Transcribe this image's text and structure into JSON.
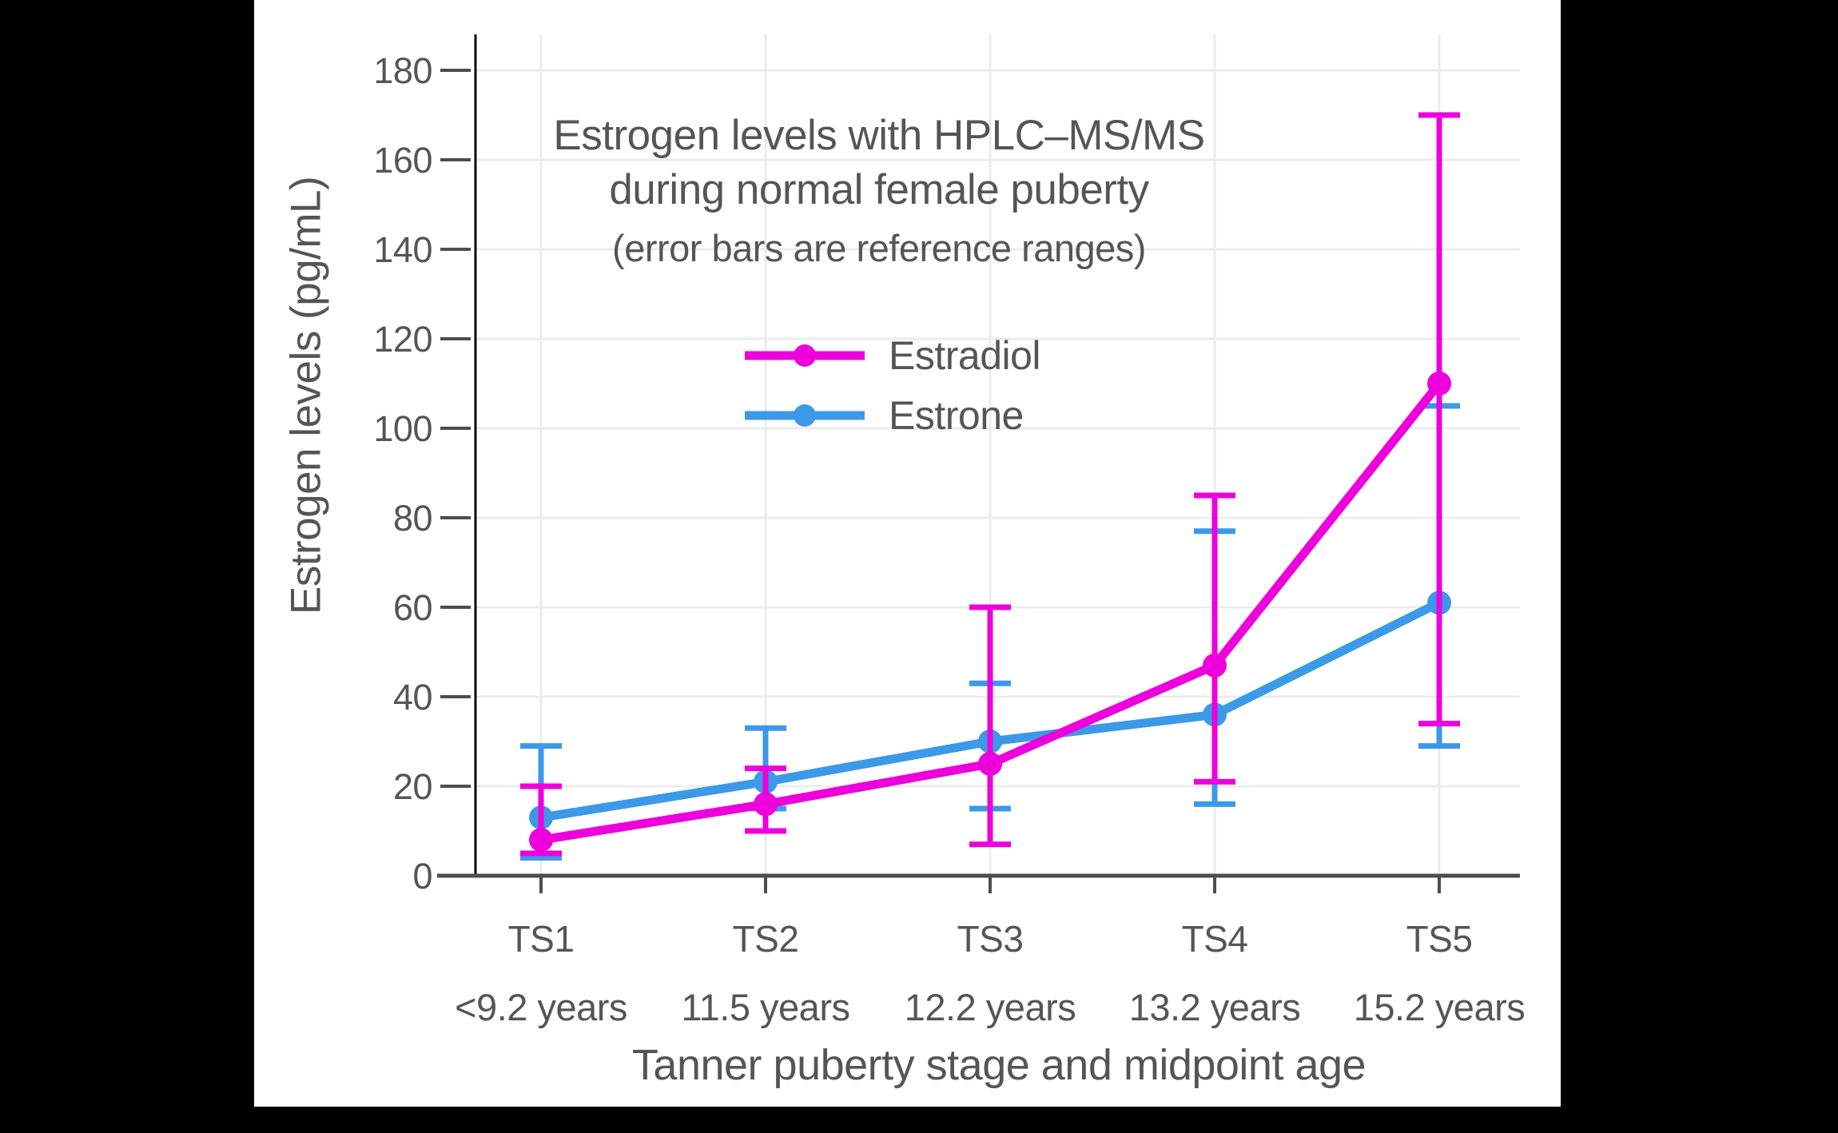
{
  "window": {
    "background_outside": "#000000",
    "panel_background": "#ffffff"
  },
  "chart_data": {
    "type": "line",
    "title_line1": "Estrogen levels with HPLC–MS/MS",
    "title_line2": "during normal female puberty",
    "subtitle": "(error bars are reference ranges)",
    "xlabel": "Tanner puberty stage and midpoint age",
    "ylabel": "Estrogen levels (pg/mL)",
    "categories": [
      "TS1",
      "TS2",
      "TS3",
      "TS4",
      "TS5"
    ],
    "category_ages": [
      "<9.2 years",
      "11.5 years",
      "12.2 years",
      "13.2 years",
      "15.2 years"
    ],
    "y_ticks": [
      0,
      20,
      40,
      60,
      80,
      100,
      120,
      140,
      160,
      180
    ],
    "ylim": [
      0,
      188
    ],
    "grid": true,
    "legend_position": "inside-top-center",
    "legend_order": [
      "Estradiol",
      "Estrone"
    ],
    "error_bar_meaning": "reference ranges",
    "series": [
      {
        "name": "Estrone",
        "color": "#3b99e8",
        "values": [
          13,
          21,
          30,
          36,
          61
        ],
        "error_low": [
          4,
          15,
          15,
          16,
          29
        ],
        "error_high": [
          29,
          33,
          43,
          77,
          105
        ]
      },
      {
        "name": "Estradiol",
        "color": "#ee00dd",
        "values": [
          8,
          16,
          25,
          47,
          110
        ],
        "error_low": [
          5,
          10,
          7,
          21,
          34
        ],
        "error_high": [
          20,
          24,
          60,
          85,
          170
        ]
      }
    ],
    "style": {
      "grid_color": "#ececec",
      "axis_color": "#4d4d4d",
      "text_color": "#555555",
      "y_axis_line_color": "#0a0a0a"
    }
  }
}
